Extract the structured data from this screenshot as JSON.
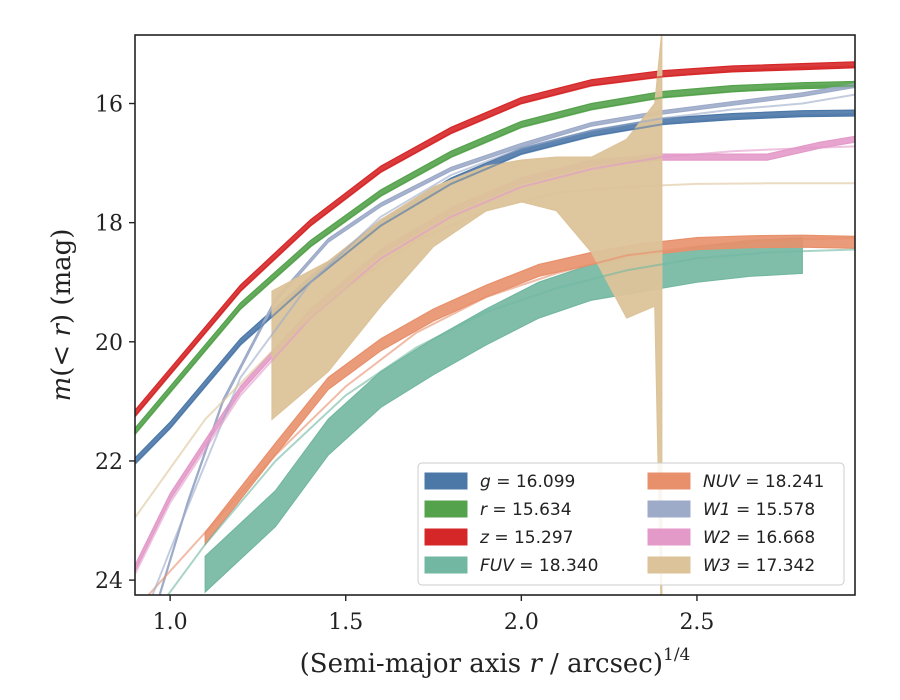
{
  "chart_data": {
    "type": "line",
    "xlabel": "(Semi-major axis r / arcsec)^1/4",
    "xlabel_main": "(Semi-major axis ",
    "xlabel_var": "r",
    "xlabel_rest": " / arcsec)",
    "xlabel_sup": "1/4",
    "ylabel": "m(< r) (mag)",
    "ylabel_pre": "m",
    "ylabel_mid": "(< ",
    "ylabel_var": "r",
    "ylabel_post": ") (mag)",
    "xlim": [
      0.9,
      2.95
    ],
    "ylim": [
      24.25,
      14.85
    ],
    "y_inverted": true,
    "grid": false,
    "legend_position": "lower-right",
    "x_ticks": [
      {
        "value": 1.0,
        "label": "1.0"
      },
      {
        "value": 1.5,
        "label": "1.5"
      },
      {
        "value": 2.0,
        "label": "2.0"
      },
      {
        "value": 2.5,
        "label": "2.5"
      }
    ],
    "y_ticks": [
      {
        "value": 16,
        "label": "16"
      },
      {
        "value": 18,
        "label": "18"
      },
      {
        "value": 20,
        "label": "20"
      },
      {
        "value": 22,
        "label": "22"
      },
      {
        "value": 24,
        "label": "24"
      }
    ],
    "series": [
      {
        "name": "g = 16.099",
        "band": "g",
        "mag": "16.099",
        "color": "#4c78a8",
        "x": [
          0.9,
          1.0,
          1.2,
          1.4,
          1.6,
          1.8,
          2.0,
          2.2,
          2.4,
          2.6,
          2.8,
          2.95
        ],
        "y": [
          22.0,
          21.4,
          20.0,
          18.95,
          18.0,
          17.3,
          16.8,
          16.5,
          16.3,
          16.22,
          16.17,
          16.16
        ],
        "halfwidth": 0.05,
        "model": {
          "x": [
            0.9,
            1.0,
            1.2,
            1.4,
            1.6,
            1.8,
            2.0,
            2.2,
            2.4,
            2.6,
            2.8,
            2.95
          ],
          "y": [
            22.05,
            21.45,
            20.05,
            19.0,
            18.05,
            17.35,
            16.85,
            16.55,
            16.35,
            16.25,
            16.2,
            16.18
          ]
        }
      },
      {
        "name": "r = 15.634",
        "band": "r",
        "mag": "15.634",
        "color": "#54a24b",
        "x": [
          0.9,
          1.0,
          1.2,
          1.4,
          1.6,
          1.8,
          2.0,
          2.2,
          2.4,
          2.6,
          2.8,
          2.95
        ],
        "y": [
          21.5,
          20.8,
          19.4,
          18.35,
          17.5,
          16.85,
          16.35,
          16.05,
          15.85,
          15.75,
          15.7,
          15.68
        ],
        "halfwidth": 0.05,
        "model": {
          "x": [
            0.9,
            1.0,
            1.2,
            1.4,
            1.6,
            1.8,
            2.0,
            2.2,
            2.4,
            2.6,
            2.8,
            2.95
          ],
          "y": [
            21.55,
            20.85,
            19.45,
            18.4,
            17.55,
            16.9,
            16.4,
            16.1,
            15.9,
            15.8,
            15.72,
            15.7
          ]
        }
      },
      {
        "name": "z = 15.297",
        "band": "z",
        "mag": "15.297",
        "color": "#d62728",
        "x": [
          0.9,
          1.0,
          1.2,
          1.4,
          1.6,
          1.8,
          2.0,
          2.2,
          2.4,
          2.6,
          2.8,
          2.95
        ],
        "y": [
          21.2,
          20.5,
          19.1,
          18.0,
          17.1,
          16.45,
          15.95,
          15.65,
          15.5,
          15.42,
          15.38,
          15.35
        ],
        "halfwidth": 0.05,
        "model": {
          "x": [
            0.9,
            1.0,
            1.2,
            1.4,
            1.6,
            1.8,
            2.0,
            2.2,
            2.4,
            2.6,
            2.8,
            2.95
          ],
          "y": [
            21.25,
            20.55,
            19.15,
            18.05,
            17.15,
            16.5,
            16.0,
            15.7,
            15.55,
            15.45,
            15.4,
            15.38
          ]
        }
      },
      {
        "name": "FUV = 18.340",
        "band": "FUV",
        "mag": "18.340",
        "color": "#72b7a1",
        "x": [
          1.1,
          1.3,
          1.45,
          1.6,
          1.75,
          1.9,
          2.05,
          2.2,
          2.35,
          2.5,
          2.65,
          2.8
        ],
        "y": [
          23.9,
          22.8,
          21.6,
          20.8,
          20.25,
          19.75,
          19.3,
          19.0,
          18.85,
          18.7,
          18.6,
          18.55
        ],
        "halfwidth": 0.3,
        "model": {
          "x": [
            0.9,
            1.1,
            1.3,
            1.5,
            1.7,
            1.9,
            2.1,
            2.3,
            2.5,
            2.7,
            2.95
          ],
          "y": [
            25.0,
            23.4,
            22.0,
            20.9,
            20.1,
            19.5,
            19.1,
            18.8,
            18.6,
            18.5,
            18.45
          ]
        }
      },
      {
        "name": "NUV = 18.241",
        "band": "NUV",
        "mag": "18.241",
        "color": "#e8906c",
        "x": [
          1.1,
          1.3,
          1.45,
          1.6,
          1.75,
          1.9,
          2.05,
          2.2,
          2.35,
          2.5,
          2.65,
          2.8,
          2.95
        ],
        "y": [
          23.3,
          21.8,
          20.7,
          20.05,
          19.55,
          19.15,
          18.8,
          18.6,
          18.45,
          18.35,
          18.32,
          18.31,
          18.33
        ],
        "halfwidth": 0.1,
        "model": {
          "x": [
            0.9,
            1.1,
            1.3,
            1.5,
            1.7,
            1.9,
            2.1,
            2.3,
            2.5,
            2.7,
            2.95
          ],
          "y": [
            24.5,
            23.2,
            21.9,
            20.75,
            19.85,
            19.25,
            18.85,
            18.55,
            18.4,
            18.3,
            18.25
          ]
        }
      },
      {
        "name": "W1 = 15.578",
        "band": "W1",
        "mag": "15.578",
        "color": "#9dabc9",
        "x": [
          0.97,
          1.05,
          1.15,
          1.3,
          1.45,
          1.6,
          1.8,
          2.0,
          2.2,
          2.4,
          2.6,
          2.8,
          2.95
        ],
        "y": [
          24.25,
          22.7,
          21.0,
          19.3,
          18.3,
          17.7,
          17.1,
          16.7,
          16.35,
          16.15,
          16.0,
          15.85,
          15.7
        ],
        "halfwidth": 0.03,
        "model": {
          "x": [
            0.9,
            1.0,
            1.2,
            1.4,
            1.6,
            1.8,
            2.0,
            2.2,
            2.4,
            2.6,
            2.8,
            2.95
          ],
          "y": [
            25.0,
            23.5,
            20.6,
            19.0,
            17.9,
            17.2,
            16.75,
            16.45,
            16.25,
            16.1,
            16.0,
            15.85
          ]
        }
      },
      {
        "name": "W2 = 16.668",
        "band": "W2",
        "mag": "16.668",
        "color": "#e39ac9",
        "x": [
          0.9,
          1.0,
          1.2,
          1.4,
          1.6,
          1.8,
          2.0,
          2.2,
          2.4,
          2.55,
          2.7,
          2.85,
          2.95
        ],
        "y": [
          23.8,
          22.6,
          20.8,
          19.5,
          18.5,
          17.8,
          17.3,
          17.0,
          16.9,
          16.9,
          16.9,
          16.7,
          16.6
        ],
        "halfwidth": 0.05,
        "model": {
          "x": [
            0.9,
            1.0,
            1.2,
            1.4,
            1.6,
            1.8,
            2.0,
            2.2,
            2.4,
            2.6,
            2.8,
            2.95
          ],
          "y": [
            23.9,
            22.7,
            20.9,
            19.6,
            18.6,
            17.9,
            17.4,
            17.1,
            16.9,
            16.8,
            16.75,
            16.72
          ]
        }
      },
      {
        "name": "W3 = 17.342",
        "band": "W3",
        "mag": "17.342",
        "color": "#dcc39a",
        "band_x": [
          1.29,
          1.45,
          1.6,
          1.75,
          1.9,
          2.0,
          2.1,
          2.2,
          2.3,
          2.38,
          2.4
        ],
        "band_lo": [
          21.3,
          20.5,
          19.4,
          18.4,
          17.8,
          17.65,
          17.8,
          18.5,
          19.6,
          19.4,
          25.0
        ],
        "band_hi": [
          19.15,
          18.65,
          17.95,
          17.4,
          17.05,
          16.95,
          16.9,
          16.9,
          16.6,
          16.0,
          14.8
        ],
        "model": {
          "x": [
            0.9,
            1.1,
            1.3,
            1.5,
            1.7,
            1.9,
            2.1,
            2.3,
            2.5,
            2.7,
            2.95
          ],
          "y": [
            22.95,
            21.3,
            20.1,
            19.1,
            18.3,
            17.8,
            17.5,
            17.4,
            17.35,
            17.34,
            17.34
          ]
        }
      }
    ]
  }
}
